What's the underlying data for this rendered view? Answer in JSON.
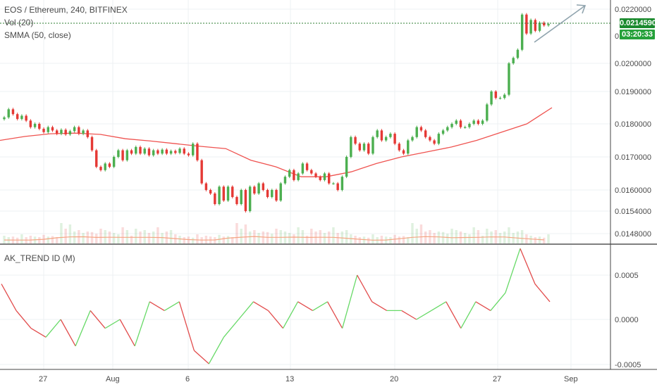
{
  "header": {
    "symbol_line": "EOS / Ethereum, 240, BITFINEX",
    "volume_indicator": "Vol (20)",
    "ma_indicator": "SMMA (50, close)"
  },
  "price_axis": {
    "labels": [
      "0.0220000",
      "0.0200000",
      "0.0190000",
      "0.0180000",
      "0.0170000",
      "0.0160000",
      "0.0154000",
      "0.0148000"
    ],
    "last_price_tag": "0.0214590",
    "countdown_tag": "03:20:33",
    "partial_label": "0."
  },
  "indicator": {
    "title": "AK_TREND ID (M)",
    "labels": [
      "0.0005",
      "0.0000",
      "-0.0005"
    ]
  },
  "time_axis": {
    "labels": [
      "27",
      "Aug",
      "6",
      "13",
      "20",
      "27",
      "Sep"
    ]
  },
  "colors": {
    "up": "#4caf50",
    "down": "#e53935",
    "smma": "#ef5350",
    "vol_ma": "#f4a582",
    "last_price_line": "#2e7d32",
    "trend_up": "#66d966",
    "trend_down": "#e24c4c",
    "arrow": "#90a4ae",
    "tag_price": "#1b8a2e",
    "tag_timer": "#25a13a"
  },
  "chart_data": {
    "type": "candlestick",
    "price_scale": {
      "ticks": [
        0.022,
        0.02,
        0.019,
        0.018,
        0.017,
        0.016,
        0.0154,
        0.0148
      ],
      "log": true
    },
    "candles_close": [
      0.0182,
      0.01845,
      0.0183,
      0.01815,
      0.01825,
      0.0181,
      0.0179,
      0.018,
      0.01785,
      0.01775,
      0.0179,
      0.0178,
      0.0177,
      0.01782,
      0.01768,
      0.01778,
      0.0179,
      0.0177,
      0.0178,
      0.0176,
      0.0172,
      0.0167,
      0.0166,
      0.0168,
      0.0167,
      0.017,
      0.0172,
      0.0169,
      0.0172,
      0.0171,
      0.0173,
      0.0171,
      0.01725,
      0.01705,
      0.0172,
      0.0171,
      0.01722,
      0.0171,
      0.01718,
      0.01712,
      0.01725,
      0.0171,
      0.01705,
      0.0174,
      0.0169,
      0.0162,
      0.016,
      0.0159,
      0.0156,
      0.0161,
      0.0157,
      0.0161,
      0.0158,
      0.0156,
      0.016,
      0.0154,
      0.0161,
      0.0159,
      0.0162,
      0.016,
      0.0158,
      0.016,
      0.0157,
      0.0162,
      0.0164,
      0.0166,
      0.0163,
      0.0165,
      0.0168,
      0.0166,
      0.0165,
      0.0164,
      0.0163,
      0.0165,
      0.0162,
      0.0162,
      0.016,
      0.0164,
      0.017,
      0.0176,
      0.0174,
      0.0172,
      0.0174,
      0.0171,
      0.0176,
      0.0178,
      0.0175,
      0.0176,
      0.0177,
      0.0174,
      0.0172,
      0.0171,
      0.0175,
      0.0176,
      0.0179,
      0.0178,
      0.0176,
      0.0175,
      0.0174,
      0.0177,
      0.0178,
      0.0179,
      0.018,
      0.0181,
      0.0179,
      0.0179,
      0.018,
      0.0181,
      0.018,
      0.0181,
      0.0186,
      0.019,
      0.0188,
      0.0188,
      0.0189,
      0.02,
      0.0202,
      0.0205,
      0.0218,
      0.0211,
      0.0216,
      0.0212,
      0.0215,
      0.0214,
      0.02145
    ],
    "smma": [
      0.0175,
      0.01762,
      0.0177,
      0.01772,
      0.01768,
      0.01755,
      0.01748,
      0.0174,
      0.01732,
      0.01725,
      0.0169,
      0.0167,
      0.0164,
      0.0164,
      0.01655,
      0.0168,
      0.017,
      0.01715,
      0.0173,
      0.0175,
      0.01775,
      0.018,
      0.0185
    ],
    "volume_relative": [
      0.15,
      0.1,
      0.12,
      0.08,
      0.2,
      0.1,
      0.15,
      0.12,
      0.1,
      0.18,
      0.12,
      0.14,
      0.1,
      0.6,
      0.4,
      0.55,
      0.3,
      0.35,
      0.25,
      0.3,
      0.28,
      0.22,
      0.4,
      0.35,
      0.3,
      0.25,
      0.2,
      0.45,
      0.35,
      0.15,
      0.4,
      0.3,
      0.35,
      0.25,
      0.3,
      0.45,
      0.25,
      0.3,
      0.35,
      0.2
    ],
    "trend_indicator": [
      0.0004,
      0.0001,
      -0.0001,
      -0.0002,
      0.0,
      -0.0003,
      0.0001,
      -0.0001,
      0.0,
      -0.0003,
      0.0002,
      0.0001,
      0.0002,
      -0.00035,
      -0.0005,
      -0.0002,
      0.0,
      0.0002,
      0.0001,
      -0.0001,
      0.0002,
      0.0001,
      0.0002,
      -0.0001,
      0.0005,
      0.0002,
      0.0001,
      0.0001,
      0.0,
      0.0001,
      0.0002,
      -0.0001,
      0.0002,
      0.0001,
      0.0003,
      0.0008,
      0.0004,
      0.0002
    ]
  }
}
